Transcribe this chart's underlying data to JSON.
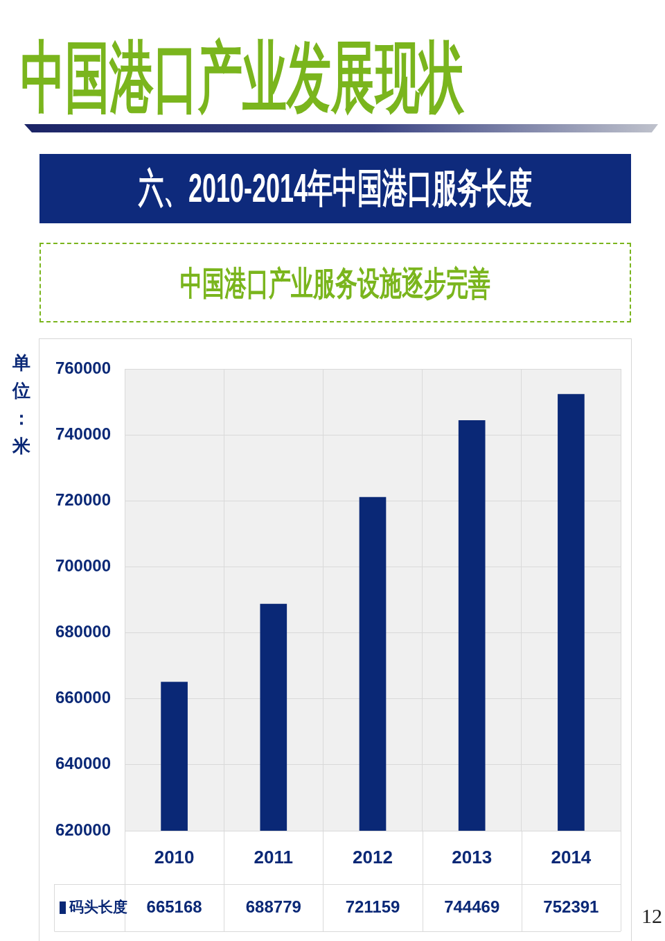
{
  "chart_data": {
    "type": "bar",
    "title": "中国港口产业发展现状",
    "subtitle": "六、2010-2014年中国港口服务长度",
    "ylabel": "单位：米",
    "annotations": [
      "中国港口产业服务设施逐步完善",
      "12"
    ],
    "categories": [
      "2010",
      "2011",
      "2012",
      "2013",
      "2014"
    ],
    "series": [
      {
        "name": "码头长度",
        "color": "#0a2876",
        "values": [
          665168,
          688779,
          721159,
          744469,
          752391
        ]
      }
    ],
    "ylim": [
      620000,
      760000
    ],
    "yticks": [
      620000,
      640000,
      660000,
      680000,
      700000,
      720000,
      740000,
      760000
    ],
    "grid": true,
    "legend": "bottom left",
    "data_labels": true
  }
}
